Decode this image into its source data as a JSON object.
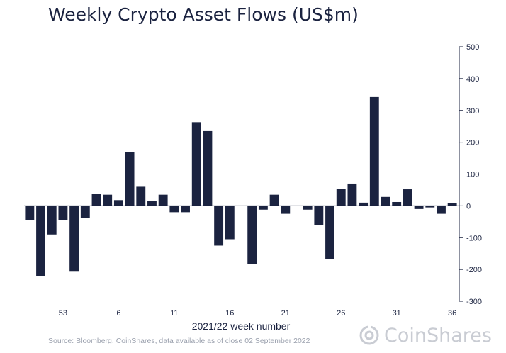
{
  "chart_data": {
    "type": "bar",
    "title": "Weekly Crypto Asset Flows (US$m)",
    "xlabel": "2021/22 week number",
    "ylabel": "",
    "ylim": [
      -300,
      500
    ],
    "yticks": [
      500,
      400,
      300,
      200,
      100,
      0,
      -100,
      -200,
      -300
    ],
    "y_axis_side": "right",
    "bar_color": "#1b2340",
    "x_tick_labels": [
      "53",
      "6",
      "11",
      "16",
      "21",
      "26",
      "31",
      "36"
    ],
    "x_tick_bar_index": [
      3,
      8,
      13,
      18,
      23,
      28,
      33,
      38
    ],
    "values": [
      -45,
      -220,
      -90,
      -45,
      -207,
      -38,
      38,
      35,
      18,
      168,
      60,
      15,
      35,
      -20,
      -20,
      263,
      235,
      -125,
      -105,
      0,
      -182,
      -12,
      35,
      -25,
      0,
      -12,
      -60,
      -168,
      53,
      70,
      10,
      342,
      28,
      12,
      52,
      -10,
      -5,
      -25,
      8
    ],
    "source": "Source: Bloomberg, CoinShares, data available as of close 02 September 2022"
  },
  "brand": {
    "name": "CoinShares",
    "accent": "#c9ccd3"
  }
}
